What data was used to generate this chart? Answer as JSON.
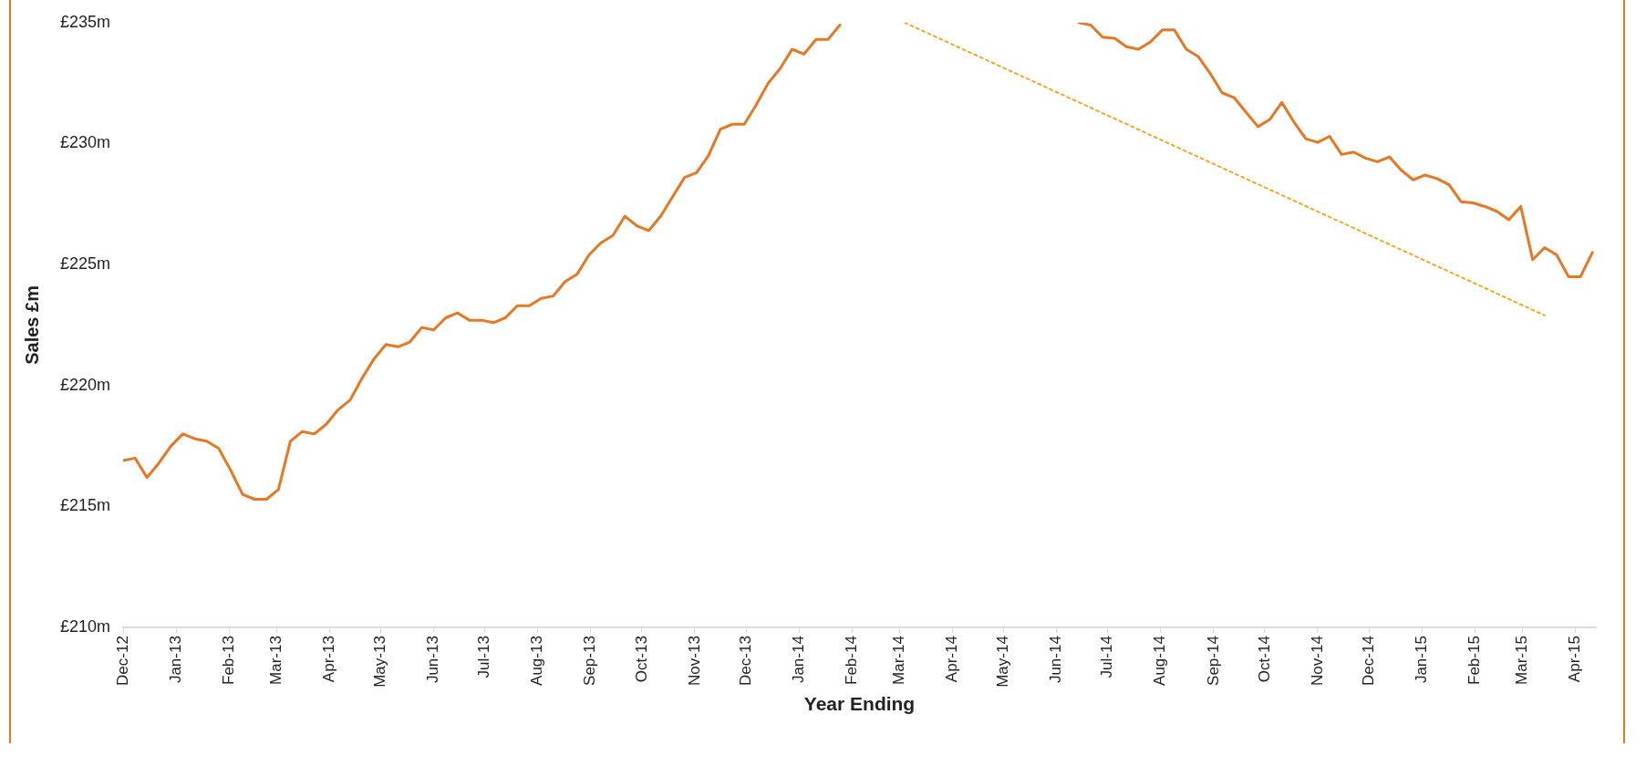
{
  "chart_data": {
    "type": "line",
    "xlabel": "Year Ending",
    "ylabel": "Sales £m",
    "xlim": [
      "2012-12-01",
      "2015-04-13"
    ],
    "ylim": [
      210,
      235
    ],
    "yticks": [
      {
        "value": 210,
        "label": "£210m"
      },
      {
        "value": 215,
        "label": "£215m"
      },
      {
        "value": 220,
        "label": "£220m"
      },
      {
        "value": 225,
        "label": "£225m"
      },
      {
        "value": 230,
        "label": "£230m"
      },
      {
        "value": 235,
        "label": "£235m"
      }
    ],
    "xticks": [
      {
        "value": "2012-12",
        "label": "Dec-12"
      },
      {
        "value": "2013-01",
        "label": "Jan-13"
      },
      {
        "value": "2013-02",
        "label": "Feb-13"
      },
      {
        "value": "2013-03",
        "label": "Mar-13"
      },
      {
        "value": "2013-04",
        "label": "Apr-13"
      },
      {
        "value": "2013-05",
        "label": "May-13"
      },
      {
        "value": "2013-06",
        "label": "Jun-13"
      },
      {
        "value": "2013-07",
        "label": "Jul-13"
      },
      {
        "value": "2013-08",
        "label": "Aug-13"
      },
      {
        "value": "2013-09",
        "label": "Sep-13"
      },
      {
        "value": "2013-10",
        "label": "Oct-13"
      },
      {
        "value": "2013-11",
        "label": "Nov-13"
      },
      {
        "value": "2013-12",
        "label": "Dec-13"
      },
      {
        "value": "2014-01",
        "label": "Jan-14"
      },
      {
        "value": "2014-02",
        "label": "Feb-14"
      },
      {
        "value": "2014-03",
        "label": "Mar-14"
      },
      {
        "value": "2014-04",
        "label": "Apr-14"
      },
      {
        "value": "2014-05",
        "label": "May-14"
      },
      {
        "value": "2014-06",
        "label": "Jun-14"
      },
      {
        "value": "2014-07",
        "label": "Jul-14"
      },
      {
        "value": "2014-08",
        "label": "Aug-14"
      },
      {
        "value": "2014-09",
        "label": "Sep-14"
      },
      {
        "value": "2014-10",
        "label": "Oct-14"
      },
      {
        "value": "2014-11",
        "label": "Nov-14"
      },
      {
        "value": "2014-12",
        "label": "Dec-14"
      },
      {
        "value": "2015-01",
        "label": "Jan-15"
      },
      {
        "value": "2015-02",
        "label": "Feb-15"
      },
      {
        "value": "2015-03",
        "label": "Mar-15"
      },
      {
        "value": "2015-04",
        "label": "Apr-15"
      }
    ],
    "grid": false,
    "legend": false,
    "marker": "none",
    "series": [
      {
        "color": "#e87722",
        "line_style": "solid",
        "x": [
          "2012-12-01",
          "2012-12-08",
          "2012-12-15",
          "2012-12-22",
          "2012-12-29",
          "2013-01-05",
          "2013-01-12",
          "2013-01-19",
          "2013-01-26",
          "2013-02-02",
          "2013-02-09",
          "2013-02-16",
          "2013-02-23",
          "2013-03-02",
          "2013-03-09",
          "2013-03-16",
          "2013-03-23",
          "2013-03-30",
          "2013-04-06",
          "2013-04-13",
          "2013-04-20",
          "2013-04-27",
          "2013-05-04",
          "2013-05-11",
          "2013-05-18",
          "2013-05-25",
          "2013-06-01",
          "2013-06-08",
          "2013-06-15",
          "2013-06-22",
          "2013-06-29",
          "2013-07-06",
          "2013-07-13",
          "2013-07-20",
          "2013-07-27",
          "2013-08-03",
          "2013-08-10",
          "2013-08-17",
          "2013-08-24",
          "2013-08-31",
          "2013-09-07",
          "2013-09-14",
          "2013-09-21",
          "2013-09-28",
          "2013-10-05",
          "2013-10-12",
          "2013-10-19",
          "2013-10-26",
          "2013-11-02",
          "2013-11-09",
          "2013-11-16",
          "2013-11-23",
          "2013-11-30",
          "2013-12-07",
          "2013-12-14",
          "2013-12-21",
          "2013-12-28",
          "2014-01-04",
          "2014-01-11",
          "2014-01-18",
          "2014-01-25",
          "2014-02-01",
          "2014-02-08",
          "2014-02-15",
          "2014-02-22",
          "2014-03-01",
          "2014-03-08",
          "2014-03-15",
          "2014-03-22",
          "2014-03-29",
          "2014-04-05",
          "2014-04-12",
          "2014-04-19",
          "2014-04-26",
          "2014-05-03",
          "2014-05-10",
          "2014-05-17",
          "2014-05-24",
          "2014-05-31",
          "2014-06-07",
          "2014-06-14",
          "2014-06-21",
          "2014-06-28",
          "2014-07-05",
          "2014-07-12",
          "2014-07-19",
          "2014-07-26",
          "2014-08-02",
          "2014-08-09",
          "2014-08-16",
          "2014-08-23",
          "2014-08-30",
          "2014-09-06",
          "2014-09-13",
          "2014-09-20",
          "2014-09-27",
          "2014-10-04",
          "2014-10-11",
          "2014-10-18",
          "2014-10-25",
          "2014-11-01",
          "2014-11-08",
          "2014-11-15",
          "2014-11-22",
          "2014-11-29",
          "2014-12-06",
          "2014-12-13",
          "2014-12-20",
          "2014-12-27",
          "2015-01-03",
          "2015-01-10",
          "2015-01-17",
          "2015-01-24",
          "2015-01-31",
          "2015-02-07",
          "2015-02-14",
          "2015-02-21",
          "2015-02-28",
          "2015-03-07",
          "2015-03-14",
          "2015-03-21",
          "2015-03-28",
          "2015-04-04",
          "2015-04-11"
        ],
        "values": [
          216.9,
          217.0,
          216.2,
          216.8,
          217.5,
          218.0,
          217.8,
          217.7,
          217.4,
          216.5,
          215.5,
          215.3,
          215.3,
          215.7,
          217.7,
          218.1,
          218.0,
          218.4,
          219.0,
          219.4,
          220.3,
          221.1,
          221.7,
          221.6,
          221.8,
          222.4,
          222.3,
          222.8,
          223.0,
          222.7,
          222.7,
          222.6,
          222.8,
          223.3,
          223.3,
          223.6,
          223.7,
          224.3,
          224.6,
          225.4,
          225.9,
          226.2,
          227.0,
          226.6,
          226.4,
          227.0,
          227.8,
          228.6,
          228.8,
          229.5,
          230.6,
          230.8,
          230.8,
          231.6,
          232.5,
          233.1,
          233.9,
          233.7,
          234.3,
          234.3,
          234.9,
          null,
          null,
          null,
          null,
          null,
          null,
          null,
          null,
          null,
          null,
          null,
          null,
          null,
          null,
          null,
          null,
          null,
          null,
          null,
          235.0,
          234.9,
          234.4,
          234.35,
          234.0,
          233.9,
          234.2,
          234.7,
          234.7,
          233.9,
          233.6,
          232.9,
          232.1,
          231.9,
          231.3,
          230.7,
          231.0,
          231.7,
          230.9,
          230.2,
          230.05,
          230.3,
          229.55,
          229.65,
          229.4,
          229.25,
          229.45,
          228.9,
          228.5,
          228.7,
          228.55,
          228.3,
          227.6,
          227.55,
          227.4,
          227.2,
          226.85,
          227.4,
          225.2,
          225.7,
          225.4,
          224.5,
          224.5,
          225.5
        ]
      },
      {
        "color": "#f5a623",
        "line_style": "dotted",
        "x": [
          "2014-03-04",
          "2015-03-14"
        ],
        "values": [
          235.0,
          222.9
        ]
      }
    ]
  }
}
